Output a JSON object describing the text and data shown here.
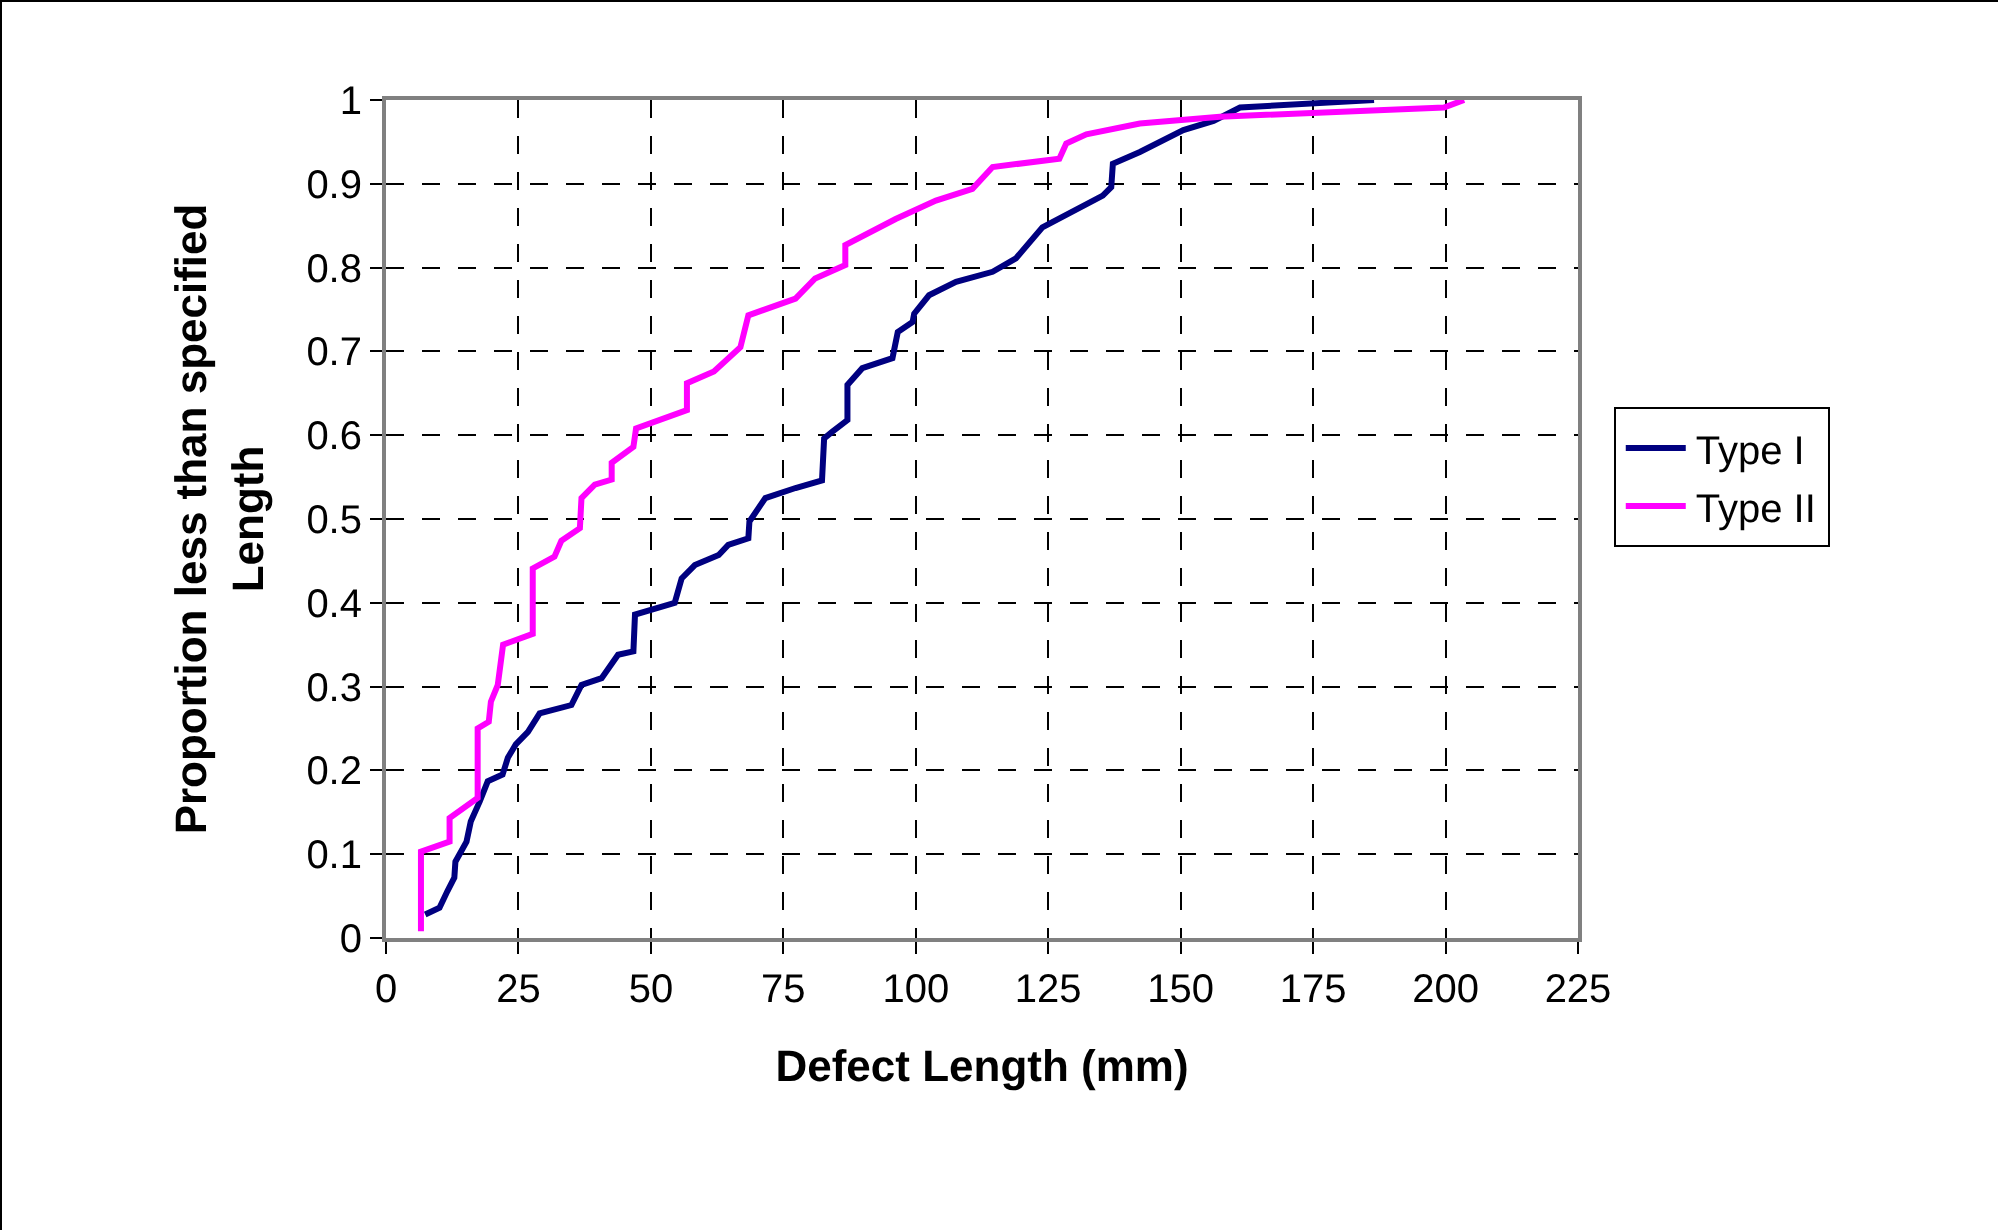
{
  "chart_data": {
    "type": "line",
    "xlabel": "Defect Length (mm)",
    "ylabel": "Proportion less than specified\nLength",
    "xlim": [
      0,
      225
    ],
    "xticks": [
      0,
      25,
      50,
      75,
      100,
      125,
      150,
      175,
      200,
      225
    ],
    "ylim": [
      0,
      1
    ],
    "yticks": [
      0,
      0.1,
      0.2,
      0.3,
      0.4,
      0.5,
      0.6,
      0.7,
      0.8,
      0.9,
      1
    ],
    "grid": true,
    "legend": "right",
    "marker": "none",
    "line_style": "solid",
    "series": [
      {
        "name": "Type I",
        "color": "#000080",
        "x": [
          7.4,
          10.1,
          11.6,
          12.9,
          13.1,
          15.2,
          16,
          17.7,
          19.2,
          22,
          23,
          24.5,
          26.8,
          29,
          35,
          36.9,
          40.7,
          43.8,
          46.7,
          47,
          54.5,
          55.8,
          58.3,
          62.8,
          64.6,
          68.4,
          68.6,
          71.6,
          77.3,
          82.3,
          82.7,
          84.2,
          87.1,
          87.1,
          89.9,
          95.6,
          96.6,
          99.4,
          99.7,
          102.5,
          107.6,
          114.5,
          118.9,
          123.9,
          135.3,
          136.9,
          137.2,
          142.3,
          150.5,
          156.2,
          161.2,
          186.5
        ],
        "values": [
          0.028,
          0.036,
          0.056,
          0.072,
          0.091,
          0.115,
          0.139,
          0.163,
          0.187,
          0.195,
          0.215,
          0.231,
          0.246,
          0.268,
          0.278,
          0.302,
          0.31,
          0.338,
          0.342,
          0.386,
          0.4,
          0.429,
          0.445,
          0.457,
          0.469,
          0.477,
          0.497,
          0.525,
          0.537,
          0.546,
          0.596,
          0.604,
          0.618,
          0.66,
          0.68,
          0.692,
          0.723,
          0.735,
          0.745,
          0.767,
          0.783,
          0.795,
          0.811,
          0.848,
          0.886,
          0.896,
          0.924,
          0.938,
          0.964,
          0.975,
          0.991,
          1
        ]
      },
      {
        "name": "Type II",
        "color": "#ff00ff",
        "x": [
          6.6,
          6.6,
          12,
          12,
          17.3,
          17.3,
          19.4,
          19.8,
          21.1,
          22.1,
          27.7,
          27.7,
          31.8,
          33.1,
          36.6,
          36.9,
          39.4,
          42.6,
          42.6,
          46.7,
          47.2,
          56.8,
          56.8,
          61.9,
          66.9,
          68.4,
          77.3,
          81,
          86.7,
          86.7,
          96.2,
          103.8,
          110.7,
          114.5,
          127.1,
          128.4,
          132.2,
          142.3,
          157.4,
          199.7,
          203.5
        ],
        "values": [
          0.008,
          0.103,
          0.115,
          0.143,
          0.167,
          0.25,
          0.258,
          0.282,
          0.302,
          0.35,
          0.363,
          0.441,
          0.455,
          0.474,
          0.489,
          0.525,
          0.541,
          0.547,
          0.567,
          0.586,
          0.608,
          0.63,
          0.662,
          0.676,
          0.705,
          0.743,
          0.763,
          0.787,
          0.803,
          0.827,
          0.858,
          0.88,
          0.894,
          0.92,
          0.93,
          0.948,
          0.959,
          0.972,
          0.98,
          0.991,
          1
        ]
      }
    ]
  }
}
